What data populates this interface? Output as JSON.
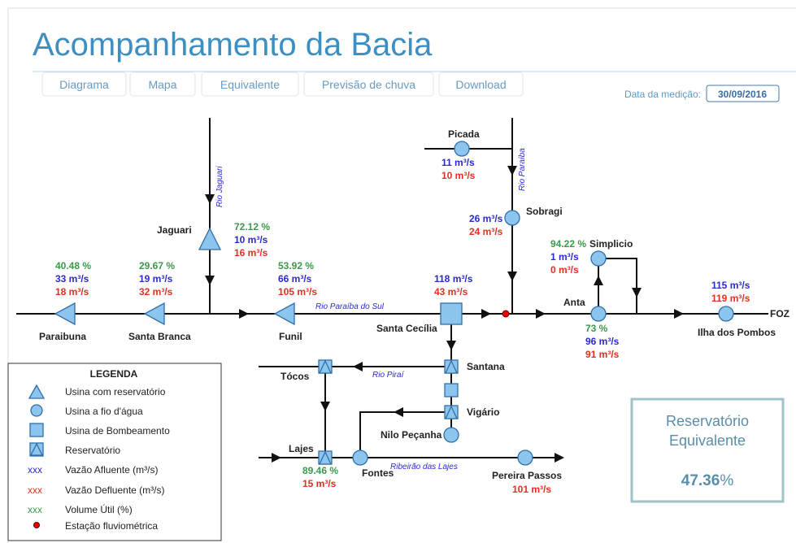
{
  "header": {
    "title": "Acompanhamento da Bacia",
    "tabs": [
      "Diagrama",
      "Mapa",
      "Equivalente",
      "Previsão de chuva",
      "Download"
    ],
    "date_label": "Data da medição:",
    "date": "30/09/2016"
  },
  "nodes": [
    {
      "label": "Paraibuna",
      "values": [
        "40.48 %",
        "33 m³/s",
        "18 m³/s"
      ]
    },
    {
      "label": "Santa Branca",
      "values": [
        "29.67 %",
        "19 m³/s",
        "32 m³/s"
      ]
    },
    {
      "label": "Jaguari",
      "values": [
        "72.12 %",
        "10 m³/s",
        "16 m³/s"
      ]
    },
    {
      "label": "Funil",
      "values": [
        "53.92 %",
        "66 m³/s",
        "105 m³/s"
      ]
    },
    {
      "label": "Santa Cecília",
      "values": [
        "118 m³/s",
        "43 m³/s"
      ]
    },
    {
      "label": "Picada",
      "values": [
        "11 m³/s",
        "10 m³/s"
      ]
    },
    {
      "label": "Sobragi",
      "values": [
        "26 m³/s",
        "24 m³/s"
      ]
    },
    {
      "label": "Simplicio",
      "values": [
        "94.22 %",
        "1 m³/s",
        "0 m³/s"
      ]
    },
    {
      "label": "Anta",
      "values": [
        "73 %",
        "96 m³/s",
        "91 m³/s"
      ]
    },
    {
      "label": "Ilha dos Pombos",
      "values": [
        "115 m³/s",
        "119 m³/s"
      ]
    },
    {
      "label": "Santana"
    },
    {
      "label": "Tócos"
    },
    {
      "label": "Vigário"
    },
    {
      "label": "Nilo Peçanha"
    },
    {
      "label": "Lajes",
      "values": [
        "89.46 %",
        "15 m³/s"
      ]
    },
    {
      "label": "Fontes"
    },
    {
      "label": "Pereira Passos",
      "values": [
        "101 m³/s"
      ]
    }
  ],
  "rivers": [
    "Rio Jaguari",
    "Rio Paraíba",
    "Rio Paraíba do Sul",
    "Rio Piraí",
    "Ribeirão das Lajes"
  ],
  "outlet": "FOZ",
  "legend": {
    "title": "LEGENDA",
    "items": [
      {
        "label": "Usina com reservatório"
      },
      {
        "label": "Usina a fio d'água"
      },
      {
        "label": "Usina de Bombeamento"
      },
      {
        "label": "Reservatório"
      },
      {
        "sample": "xxx",
        "label": "Vazão Afluente (m³/s)"
      },
      {
        "sample": "xxx",
        "label": "Vazão Defluente (m³/s)"
      },
      {
        "sample": "xxx",
        "label": "Volume Útil (%)"
      },
      {
        "label": "Estação fluviométrica"
      }
    ]
  },
  "equivalent": {
    "lines": [
      "Reservatório",
      "Equivalente"
    ],
    "value": "47.36",
    "unit": "%"
  }
}
